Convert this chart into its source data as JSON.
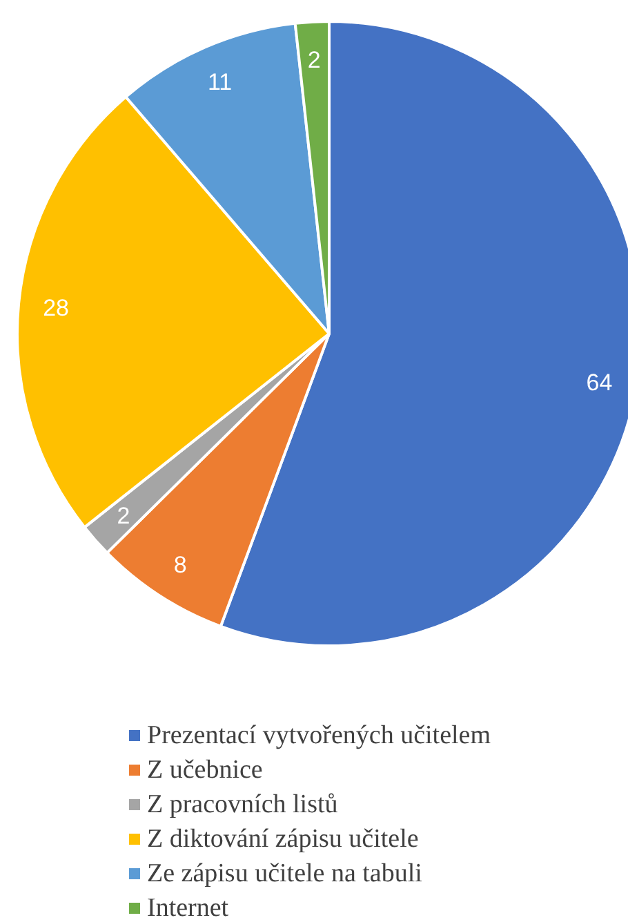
{
  "chart_data": {
    "type": "pie",
    "categories": [
      "Prezentací vytvořených učitelem",
      "Z učebnice",
      "Z pracovních listů",
      "Z diktování zápisu učitele",
      "Ze zápisu učitele na tabuli",
      "Internet"
    ],
    "values": [
      64,
      8,
      2,
      28,
      11,
      2
    ],
    "colors": [
      "#4472c4",
      "#ed7d31",
      "#a5a5a5",
      "#ffc000",
      "#5b9bd5",
      "#70ad47"
    ],
    "data_labels": true,
    "legend": "bottom"
  }
}
